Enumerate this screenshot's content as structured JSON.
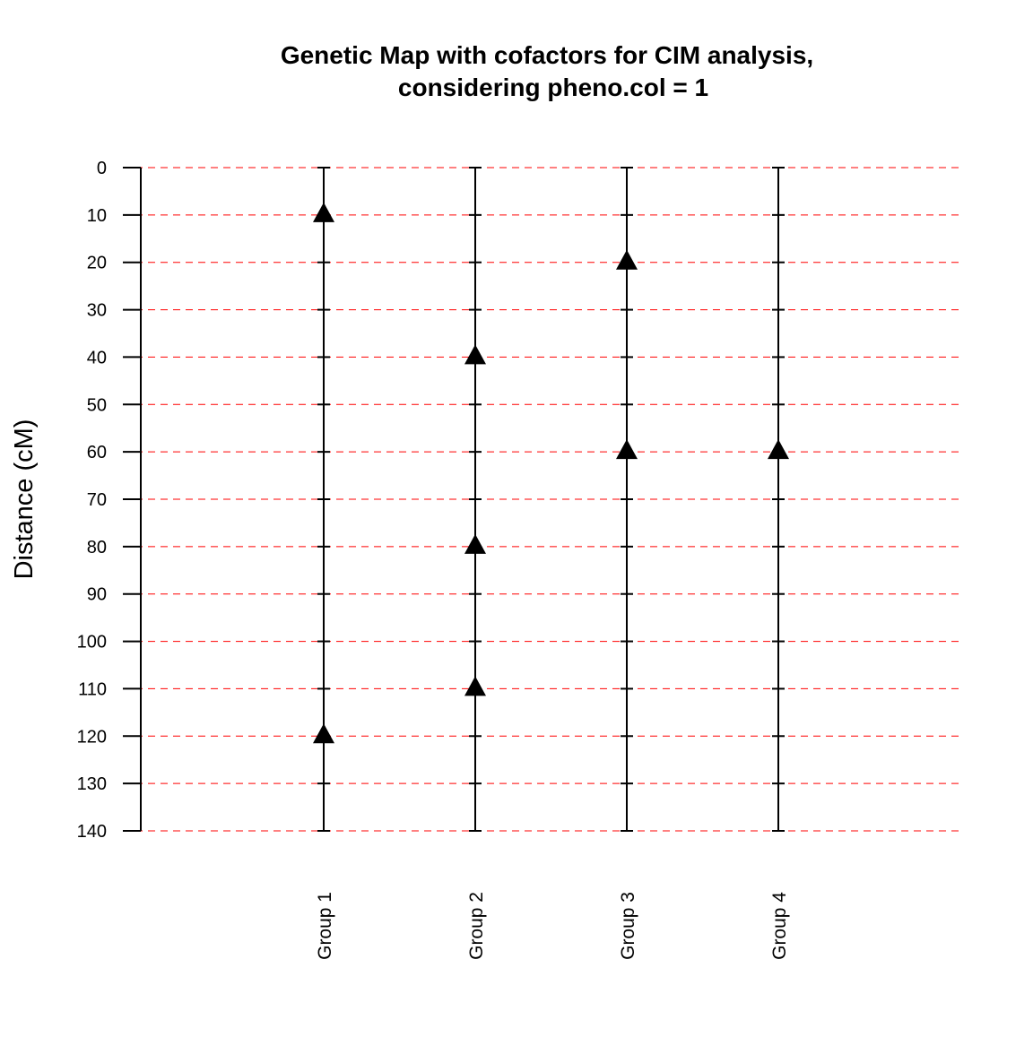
{
  "chart_data": {
    "type": "scatter",
    "title": "Genetic Map with cofactors for CIM analysis,",
    "subtitle": "considering pheno.col =  1",
    "ylabel": "Distance (cM)",
    "xlabel": "",
    "ylim": [
      0,
      140
    ],
    "y_reversed": true,
    "y_ticks": [
      "0",
      "10",
      "20",
      "30",
      "40",
      "50",
      "60",
      "70",
      "80",
      "90",
      "100",
      "110",
      "120",
      "130",
      "140"
    ],
    "categories": [
      "Group 1",
      "Group 2",
      "Group 3",
      "Group 4"
    ],
    "grid": "horizontal dashed at every 10 cM",
    "colors": {
      "grid": "#ff0000",
      "line": "#000000",
      "marker": "#000000"
    },
    "marker_shape": "triangle",
    "groups": [
      {
        "name": "Group 1",
        "length": 140,
        "cofactors": [
          10,
          120
        ]
      },
      {
        "name": "Group 2",
        "length": 140,
        "cofactors": [
          40,
          80,
          110
        ]
      },
      {
        "name": "Group 3",
        "length": 140,
        "cofactors": [
          20,
          60
        ]
      },
      {
        "name": "Group 4",
        "length": 140,
        "cofactors": [
          60
        ]
      }
    ]
  }
}
